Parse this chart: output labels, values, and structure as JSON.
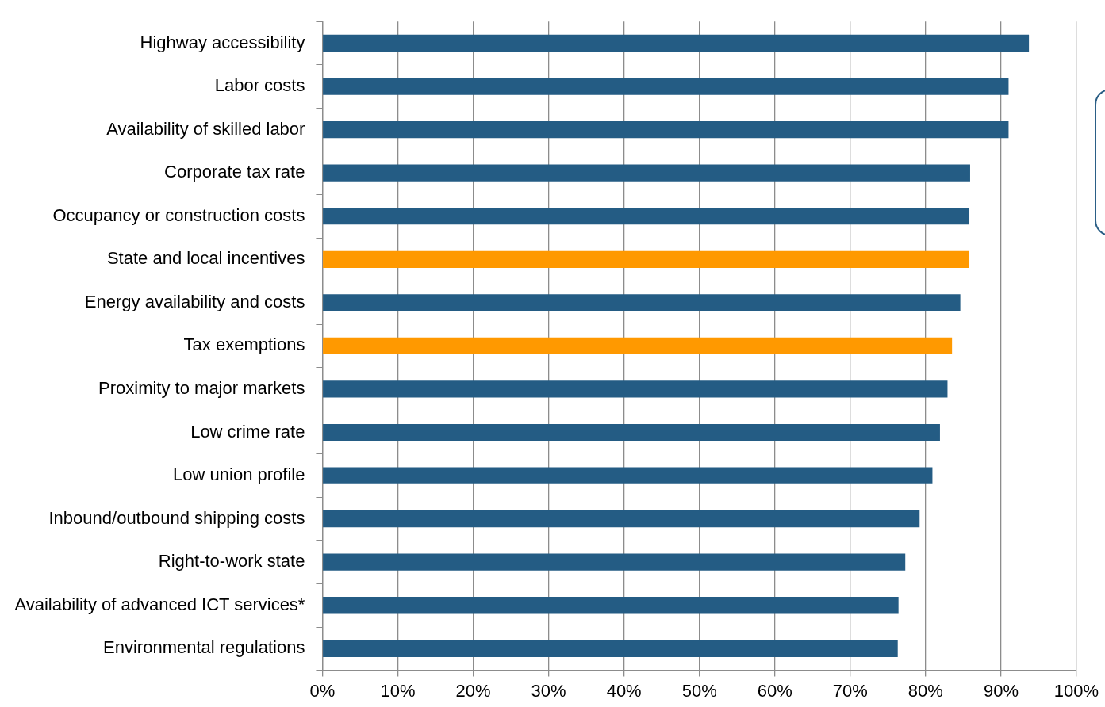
{
  "chart_data": {
    "type": "bar",
    "orientation": "horizontal",
    "categories": [
      "Highway accessibility",
      "Labor costs",
      "Availability of skilled labor",
      "Corporate tax rate",
      "Occupancy or construction costs",
      "State and local incentives",
      "Energy availability and costs",
      "Tax exemptions",
      "Proximity to major markets",
      "Low crime rate",
      "Low union profile",
      "Inbound/outbound shipping costs",
      "Right-to-work state",
      "Availability of advanced ICT services*",
      "Environmental regulations"
    ],
    "values": [
      93.7,
      91.0,
      91.0,
      85.9,
      85.8,
      85.8,
      84.6,
      83.5,
      82.9,
      81.9,
      80.9,
      79.2,
      77.3,
      76.4,
      76.3
    ],
    "colors": [
      "#245c84",
      "#245c84",
      "#245c84",
      "#245c84",
      "#245c84",
      "#ff9900",
      "#245c84",
      "#ff9900",
      "#245c84",
      "#245c84",
      "#245c84",
      "#245c84",
      "#245c84",
      "#245c84",
      "#245c84"
    ],
    "xlim": [
      0,
      100
    ],
    "xticks": [
      {
        "value": 0,
        "label": "0%"
      },
      {
        "value": 10,
        "label": "10%"
      },
      {
        "value": 20,
        "label": "20%"
      },
      {
        "value": 30,
        "label": "30%"
      },
      {
        "value": 40,
        "label": "40%"
      },
      {
        "value": 50,
        "label": "50%"
      },
      {
        "value": 60,
        "label": "60%"
      },
      {
        "value": 70,
        "label": "70%"
      },
      {
        "value": 80,
        "label": "80%"
      },
      {
        "value": 90,
        "label": "90%"
      },
      {
        "value": 100,
        "label": "100%"
      }
    ],
    "grid": "x",
    "legend": false
  }
}
